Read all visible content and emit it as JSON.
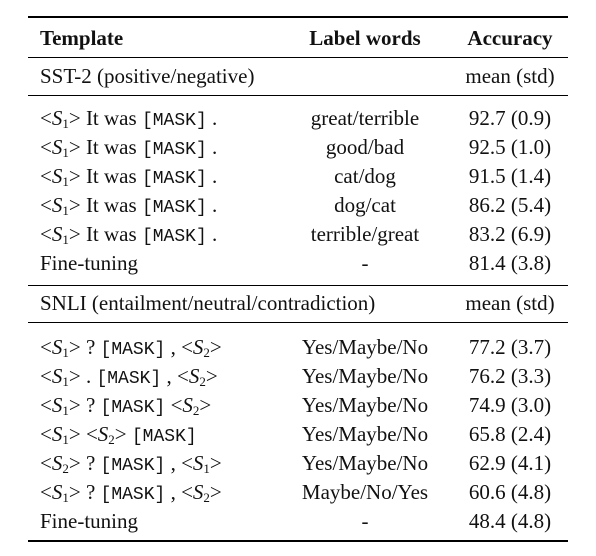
{
  "header": {
    "template": "Template",
    "label_words": "Label words",
    "accuracy": "Accuracy"
  },
  "sst2": {
    "title": "SST-2 (positive/negative)",
    "stat": "mean (std)",
    "it_was": "It was",
    "mask": "[MASK]",
    "rows": [
      {
        "label": "great/terrible",
        "acc": "92.7 (0.9)"
      },
      {
        "label": "good/bad",
        "acc": "92.5 (1.0)"
      },
      {
        "label": "cat/dog",
        "acc": "91.5 (1.4)"
      },
      {
        "label": "dog/cat",
        "acc": "86.2 (5.4)"
      },
      {
        "label": "terrible/great",
        "acc": "83.2 (6.9)"
      }
    ],
    "finetune": {
      "template": "Fine-tuning",
      "label": "-",
      "acc": "81.4 (3.8)"
    }
  },
  "snli": {
    "title": "SNLI (entailment/neutral/contradiction)",
    "stat": "mean (std)",
    "q": "?",
    "dot": ".",
    "comma": ",",
    "mask": "[MASK]",
    "rows": [
      {
        "label": "Yes/Maybe/No",
        "acc": "77.2 (3.7)"
      },
      {
        "label": "Yes/Maybe/No",
        "acc": "76.2 (3.3)"
      },
      {
        "label": "Yes/Maybe/No",
        "acc": "74.9 (3.0)"
      },
      {
        "label": "Yes/Maybe/No",
        "acc": "65.8 (2.4)"
      },
      {
        "label": "Yes/Maybe/No",
        "acc": "62.9 (4.1)"
      },
      {
        "label": "Maybe/No/Yes",
        "acc": "60.6 (4.8)"
      }
    ],
    "finetune": {
      "template": "Fine-tuning",
      "label": "-",
      "acc": "48.4 (4.8)"
    }
  },
  "symbols": {
    "lt": "<",
    "gt": ">",
    "S": "S",
    "one": "1",
    "two": "2"
  }
}
